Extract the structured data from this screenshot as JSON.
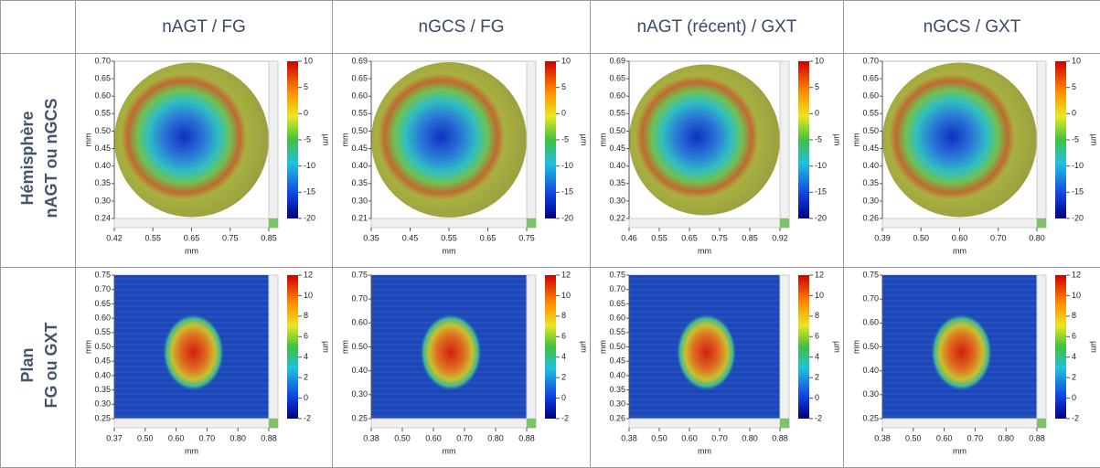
{
  "table": {
    "columns": [
      "nAGT / FG",
      "nGCS / FG",
      "nAGT (récent) / GXT",
      "nGCS / GXT"
    ],
    "rows": [
      {
        "label": [
          "Hémisphère",
          "nAGT ou nGCS"
        ],
        "kind": "hemisphere",
        "cells": [
          {
            "yticks": [
              "0.70",
              "0.65",
              "0.60",
              "0.55",
              "0.50",
              "0.45",
              "0.40",
              "0.35",
              "0.30",
              "0.24"
            ],
            "xticks": [
              "0.42",
              "0.55",
              "0.65",
              "0.75",
              "0.85"
            ],
            "cbticks": [
              "10",
              "5",
              "0",
              "-5",
              "-10",
              "-15",
              "-20"
            ],
            "xlabel": "mm",
            "ylabel": "mm",
            "cblabel": "µm"
          },
          {
            "yticks": [
              "0.69",
              "0.65",
              "0.60",
              "0.55",
              "0.50",
              "0.45",
              "0.40",
              "0.35",
              "0.30",
              "0.21"
            ],
            "xticks": [
              "0.35",
              "0.45",
              "0.55",
              "0.65",
              "0.75"
            ],
            "cbticks": [
              "10",
              "5",
              "0",
              "-5",
              "-10",
              "-15",
              "-20"
            ],
            "xlabel": "mm",
            "ylabel": "mm",
            "cblabel": "µm"
          },
          {
            "yticks": [
              "0.69",
              "0.65",
              "0.60",
              "0.55",
              "0.50",
              "0.45",
              "0.40",
              "0.35",
              "0.30",
              "0.22"
            ],
            "xticks": [
              "0.46",
              "0.55",
              "0.65",
              "0.75",
              "0.85",
              "0.92"
            ],
            "cbticks": [
              "10",
              "5",
              "0",
              "-5",
              "-10",
              "-15",
              "-20"
            ],
            "xlabel": "mm",
            "ylabel": "mm",
            "cblabel": "µm"
          },
          {
            "yticks": [
              "0.70",
              "0.65",
              "0.60",
              "0.55",
              "0.50",
              "0.45",
              "0.40",
              "0.35",
              "0.30",
              "0.26"
            ],
            "xticks": [
              "0.39",
              "0.50",
              "0.60",
              "0.70",
              "0.80"
            ],
            "cbticks": [
              "10",
              "5",
              "0",
              "-5",
              "-10",
              "-15",
              "-20"
            ],
            "xlabel": "mm",
            "ylabel": "mm",
            "cblabel": "µm"
          }
        ]
      },
      {
        "label": [
          "Plan",
          "FG ou GXT"
        ],
        "kind": "plan",
        "cells": [
          {
            "yticks": [
              "0.75",
              "0.70",
              "0.65",
              "0.60",
              "0.55",
              "0.50",
              "0.45",
              "0.40",
              "0.35",
              "0.30",
              "0.25"
            ],
            "xticks": [
              "0.37",
              "0.50",
              "0.60",
              "0.70",
              "0.80",
              "0.88"
            ],
            "cbticks": [
              "12",
              "10",
              "8",
              "6",
              "4",
              "2",
              "0",
              "-2"
            ],
            "xlabel": "mm",
            "ylabel": "mm",
            "cblabel": "µm"
          },
          {
            "yticks": [
              "0.75",
              "0.70",
              "0.60",
              "0.50",
              "0.40",
              "0.30",
              "0.25"
            ],
            "xticks": [
              "0.38",
              "0.50",
              "0.60",
              "0.70",
              "0.80",
              "0.88"
            ],
            "cbticks": [
              "12",
              "10",
              "8",
              "6",
              "4",
              "2",
              "0",
              "-2"
            ],
            "xlabel": "mm",
            "ylabel": "mm",
            "cblabel": "µm"
          },
          {
            "yticks": [
              "0.75",
              "0.70",
              "0.65",
              "0.60",
              "0.55",
              "0.50",
              "0.45",
              "0.40",
              "0.35",
              "0.30",
              "0.26"
            ],
            "xticks": [
              "0.38",
              "0.50",
              "0.60",
              "0.70",
              "0.80",
              "0.88"
            ],
            "cbticks": [
              "12",
              "10",
              "8",
              "6",
              "4",
              "2",
              "0",
              "-2"
            ],
            "xlabel": "mm",
            "ylabel": "mm",
            "cblabel": "µm"
          },
          {
            "yticks": [
              "0.75",
              "0.70",
              "0.60",
              "0.50",
              "0.40",
              "0.30",
              "0.25"
            ],
            "xticks": [
              "0.38",
              "0.50",
              "0.60",
              "0.70",
              "0.80",
              "0.88"
            ],
            "cbticks": [
              "12",
              "10",
              "8",
              "6",
              "4",
              "2",
              "0",
              "-2"
            ],
            "xlabel": "mm",
            "ylabel": "mm",
            "cblabel": "µm"
          }
        ]
      }
    ]
  }
}
